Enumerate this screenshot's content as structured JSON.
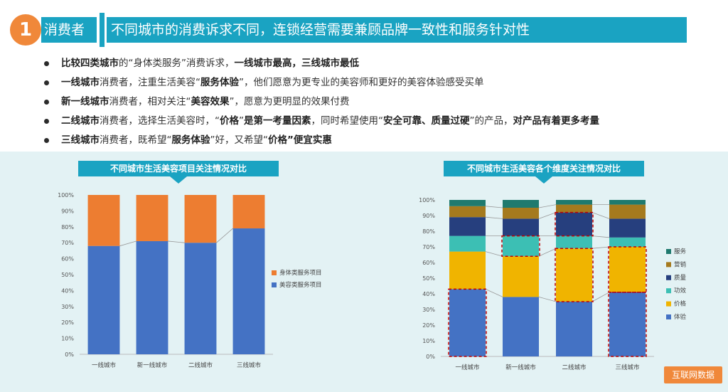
{
  "header": {
    "number": "1",
    "badge": "消费者",
    "headline": "不同城市的消费诉求不同，连锁经营需要兼顾品牌一致性和服务针对性"
  },
  "bullets": [
    {
      "segments": [
        {
          "t": "比较四类城市",
          "b": true
        },
        {
          "t": "的“身体类服务”消费诉求，",
          "b": false
        },
        {
          "t": "一线城市最高，三线城市最低",
          "b": true
        }
      ]
    },
    {
      "segments": [
        {
          "t": "一线城市",
          "b": true
        },
        {
          "t": "消费者，注重生活美容“",
          "b": false
        },
        {
          "t": "服务体验",
          "b": true
        },
        {
          "t": "”，他们愿意为更专业的美容师和更好的美容体验感受买单",
          "b": false
        }
      ]
    },
    {
      "segments": [
        {
          "t": "新一线城市",
          "b": true
        },
        {
          "t": "消费者，相对关注“",
          "b": false
        },
        {
          "t": "美容效果",
          "b": true
        },
        {
          "t": "”，愿意为更明显的效果付费",
          "b": false
        }
      ]
    },
    {
      "segments": [
        {
          "t": "二线城市",
          "b": true
        },
        {
          "t": "消费者，选择生活美容时，“",
          "b": false
        },
        {
          "t": "价格",
          "b": true
        },
        {
          "t": "”",
          "b": false
        },
        {
          "t": "是第一考量因素",
          "b": true
        },
        {
          "t": "，同时希望使用“",
          "b": false
        },
        {
          "t": "安全可靠、质量过硬",
          "b": true
        },
        {
          "t": "”的产品，",
          "b": false
        },
        {
          "t": "对产品有着更多考量",
          "b": true
        }
      ]
    },
    {
      "segments": [
        {
          "t": "三线城市",
          "b": true
        },
        {
          "t": "消费者，既希望“",
          "b": false
        },
        {
          "t": "服务体验",
          "b": true
        },
        {
          "t": "”好，又希望“",
          "b": false
        },
        {
          "t": "价格",
          "b": true
        },
        {
          "t": "”便宜实惠",
          "b": true
        }
      ]
    }
  ],
  "source_label": "互联网数据",
  "chart_data": [
    {
      "type": "bar",
      "stacked": true,
      "title": "不同城市生活美容项目关注情况对比",
      "categories": [
        "一线城市",
        "新一线城市",
        "二线城市",
        "三线城市"
      ],
      "yticks": [
        "0%",
        "10%",
        "20%",
        "30%",
        "40%",
        "50%",
        "60%",
        "70%",
        "80%",
        "90%",
        "100%"
      ],
      "ylim": [
        0,
        100
      ],
      "series": [
        {
          "name": "美容类服务项目",
          "color": "#4472c4",
          "values": [
            68,
            71,
            70,
            79
          ]
        },
        {
          "name": "身体类服务项目",
          "color": "#ed7d31",
          "values": [
            32,
            29,
            30,
            21
          ]
        }
      ],
      "legend_position": "right"
    },
    {
      "type": "bar",
      "stacked": true,
      "title": "不同城市生活美容各个维度关注情况对比",
      "categories": [
        "一线城市",
        "新一线城市",
        "二线城市",
        "三线城市"
      ],
      "yticks": [
        "0%",
        "10%",
        "20%",
        "30%",
        "40%",
        "50%",
        "60%",
        "70%",
        "80%",
        "90%",
        "100%"
      ],
      "ylim": [
        0,
        100
      ],
      "series": [
        {
          "name": "体验",
          "color": "#4472c4",
          "values": [
            43,
            38,
            35,
            41
          ]
        },
        {
          "name": "价格",
          "color": "#f0b400",
          "values": [
            24,
            26,
            34,
            29
          ]
        },
        {
          "name": "功效",
          "color": "#3cbfb4",
          "values": [
            10,
            13,
            8,
            6
          ]
        },
        {
          "name": "质量",
          "color": "#263f7e",
          "values": [
            12,
            11,
            15,
            12
          ]
        },
        {
          "name": "营销",
          "color": "#a57a1e",
          "values": [
            7,
            7,
            5,
            9
          ]
        },
        {
          "name": "服务",
          "color": "#1f7a6e",
          "values": [
            4,
            5,
            3,
            3
          ]
        }
      ],
      "highlights": [
        {
          "category": 0,
          "from": 0,
          "to": 43
        },
        {
          "category": 1,
          "from": 64,
          "to": 77
        },
        {
          "category": 2,
          "from": 35,
          "to": 69
        },
        {
          "category": 2,
          "from": 77,
          "to": 92
        },
        {
          "category": 3,
          "from": 0,
          "to": 41
        },
        {
          "category": 3,
          "from": 41,
          "to": 70
        }
      ],
      "legend_position": "right"
    }
  ]
}
